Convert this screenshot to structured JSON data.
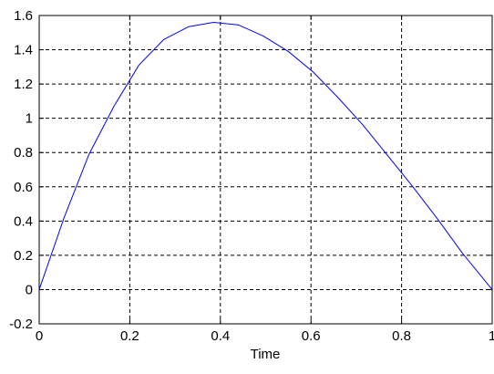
{
  "chart_data": {
    "type": "line",
    "title": "",
    "xlabel": "Time",
    "ylabel": "",
    "xlim": [
      0,
      1
    ],
    "ylim": [
      -0.2,
      1.6
    ],
    "xticks": [
      0,
      0.2,
      0.4,
      0.6,
      0.8,
      1
    ],
    "xtick_labels": [
      "0",
      "0.2",
      "0.4",
      "0.6",
      "0.8",
      "1"
    ],
    "yticks": [
      -0.2,
      0,
      0.2,
      0.4,
      0.6,
      0.8,
      1,
      1.2,
      1.4,
      1.6
    ],
    "ytick_labels": [
      "-0.2",
      "0",
      "0.2",
      "0.4",
      "0.6",
      "0.8",
      "1",
      "1.2",
      "1.4",
      "1.6"
    ],
    "grid": true,
    "grid_style": "dashed",
    "series": [
      {
        "color": "#0000ff",
        "x": [
          0,
          0.055,
          0.11,
          0.165,
          0.22,
          0.275,
          0.33,
          0.385,
          0.44,
          0.495,
          0.55,
          0.605,
          0.66,
          0.715,
          0.77,
          0.825,
          0.88,
          0.935,
          1
        ],
        "y": [
          0,
          0.42,
          0.79,
          1.07,
          1.31,
          1.46,
          1.535,
          1.56,
          1.545,
          1.48,
          1.39,
          1.27,
          1.12,
          0.96,
          0.78,
          0.6,
          0.41,
          0.21,
          0
        ]
      }
    ]
  }
}
